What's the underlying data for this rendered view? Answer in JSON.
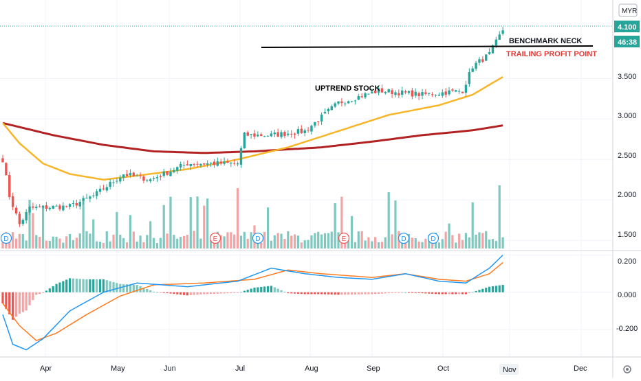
{
  "currency_label": "MYR",
  "last_price_label": "4.100",
  "countdown_label": "46:38",
  "colors": {
    "up": "#26a69a",
    "down": "#ef5350",
    "up_vol": "#7ec8c0",
    "down_vol": "#f2a3a3",
    "ma_short": "#f7b529",
    "ma_long": "#b22222",
    "macd": "#2196f3",
    "signal": "#ff7a1f",
    "benchmark": "#000000",
    "trailing": "#e53935"
  },
  "price_axis": {
    "ticks": [
      "3.500",
      "3.000",
      "2.500",
      "2.000",
      "1.500"
    ]
  },
  "macd_axis": {
    "ticks": [
      "0.200",
      "0.000",
      "-0.200"
    ]
  },
  "time_axis": {
    "ticks": [
      "Apr",
      "May",
      "Jun",
      "Jul",
      "Aug",
      "Sep",
      "Oct",
      "Nov",
      "Dec"
    ]
  },
  "annotations": {
    "uptrend": "UPTREND STOCK",
    "benchmark": "BENCHMARK NECK",
    "trailing": "TRAILING PROFIT POINT"
  },
  "chart_data": {
    "type": "candlestick",
    "grid": true,
    "price_range": [
      1.4,
      4.3
    ],
    "macd_range": [
      -0.33,
      0.21
    ],
    "close_anchors": [
      [
        0,
        2.5
      ],
      [
        2,
        2.05
      ],
      [
        5,
        1.7
      ],
      [
        8,
        1.9
      ],
      [
        20,
        1.92
      ],
      [
        27,
        2.05
      ],
      [
        36,
        2.32
      ],
      [
        44,
        2.25
      ],
      [
        55,
        2.45
      ],
      [
        70,
        2.45
      ],
      [
        72,
        2.8
      ],
      [
        80,
        2.8
      ],
      [
        90,
        2.85
      ],
      [
        100,
        3.2
      ],
      [
        112,
        3.35
      ],
      [
        125,
        3.3
      ],
      [
        137,
        3.35
      ],
      [
        140,
        3.65
      ],
      [
        145,
        3.8
      ],
      [
        149,
        4.1
      ]
    ],
    "ma_short_anchors": [
      [
        0,
        2.95
      ],
      [
        5,
        2.7
      ],
      [
        12,
        2.45
      ],
      [
        20,
        2.32
      ],
      [
        30,
        2.25
      ],
      [
        40,
        2.3
      ],
      [
        55,
        2.38
      ],
      [
        70,
        2.5
      ],
      [
        85,
        2.65
      ],
      [
        100,
        2.85
      ],
      [
        115,
        3.05
      ],
      [
        130,
        3.17
      ],
      [
        140,
        3.3
      ],
      [
        149,
        3.52
      ]
    ],
    "ma_long_anchors": [
      [
        0,
        2.95
      ],
      [
        15,
        2.8
      ],
      [
        30,
        2.68
      ],
      [
        45,
        2.6
      ],
      [
        60,
        2.58
      ],
      [
        75,
        2.6
      ],
      [
        95,
        2.65
      ],
      [
        110,
        2.72
      ],
      [
        125,
        2.8
      ],
      [
        140,
        2.86
      ],
      [
        149,
        2.92
      ]
    ],
    "benchmark_price": 3.85,
    "volume_event_markers": [
      "D",
      "E",
      "D",
      "E",
      "D",
      "D"
    ],
    "macd_anchors": [
      [
        0,
        -0.12
      ],
      [
        3,
        -0.28
      ],
      [
        7,
        -0.31
      ],
      [
        12,
        -0.25
      ],
      [
        20,
        -0.1
      ],
      [
        30,
        0.0
      ],
      [
        40,
        0.05
      ],
      [
        55,
        0.03
      ],
      [
        70,
        0.06
      ],
      [
        80,
        0.13
      ],
      [
        90,
        0.1
      ],
      [
        100,
        0.08
      ],
      [
        110,
        0.07
      ],
      [
        120,
        0.1
      ],
      [
        130,
        0.06
      ],
      [
        138,
        0.05
      ],
      [
        145,
        0.13
      ],
      [
        149,
        0.2
      ]
    ],
    "signal_anchors": [
      [
        0,
        -0.06
      ],
      [
        5,
        -0.18
      ],
      [
        10,
        -0.26
      ],
      [
        16,
        -0.22
      ],
      [
        25,
        -0.12
      ],
      [
        35,
        -0.02
      ],
      [
        45,
        0.04
      ],
      [
        60,
        0.05
      ],
      [
        75,
        0.07
      ],
      [
        85,
        0.12
      ],
      [
        95,
        0.1
      ],
      [
        110,
        0.08
      ],
      [
        120,
        0.1
      ],
      [
        130,
        0.07
      ],
      [
        138,
        0.06
      ],
      [
        145,
        0.1
      ],
      [
        149,
        0.16
      ]
    ]
  }
}
